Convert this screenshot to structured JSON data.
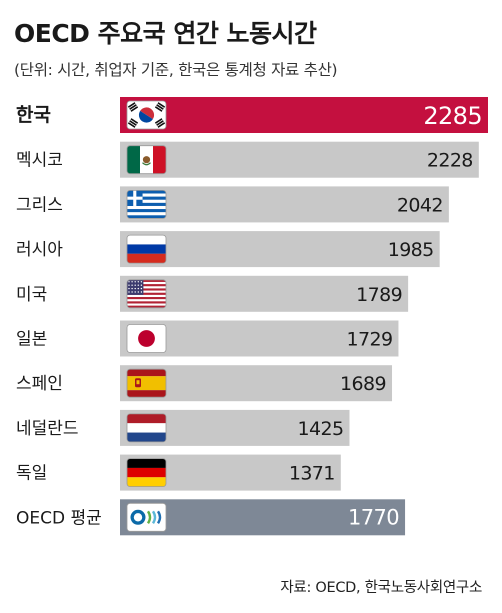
{
  "title": "OECD 주요국 연간 노동시간",
  "subtitle": "(단위: 시간, 취업자 기준, 한국은 통계청 자료 추산)",
  "source": "자료: OECD, 한국노동사회연구소",
  "colors": {
    "highlight": "#c4103f",
    "bar": "#c8c8c8",
    "average": "#7e8896"
  },
  "chart_data": {
    "type": "bar",
    "orientation": "horizontal",
    "categories": [
      "한국",
      "멕시코",
      "그리스",
      "러시아",
      "미국",
      "일본",
      "스페인",
      "네덜란드",
      "독일",
      "OECD 평균"
    ],
    "values": [
      2285,
      2228,
      2042,
      1985,
      1789,
      1729,
      1689,
      1425,
      1371,
      1770
    ],
    "flags": [
      "south-korea-flag-icon",
      "mexico-flag-icon",
      "greece-flag-icon",
      "russia-flag-icon",
      "usa-flag-icon",
      "japan-flag-icon",
      "spain-flag-icon",
      "netherlands-flag-icon",
      "germany-flag-icon",
      "oecd-logo-icon"
    ],
    "highlight_index": 0,
    "average_index": 9,
    "xlim": [
      0,
      2285
    ],
    "grid": false,
    "legend": "none",
    "xlabel": "",
    "ylabel": ""
  }
}
